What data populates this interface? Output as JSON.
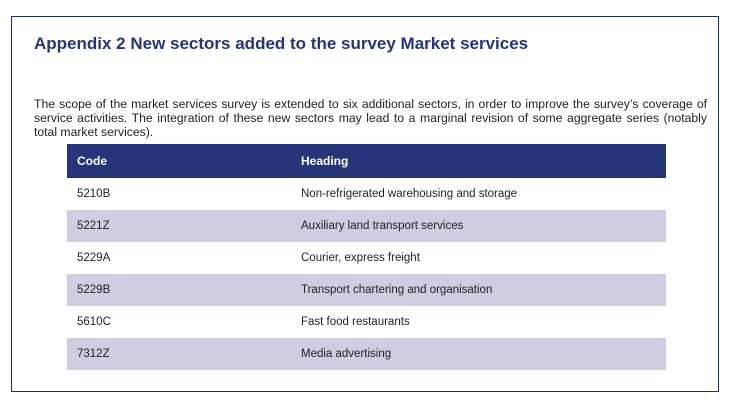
{
  "title": "Appendix 2 New sectors added to the survey  Market services",
  "paragraph": "The scope of the market services survey is extended to six additional sectors, in order to improve the survey’s coverage of service activities. The integration of these new sectors may lead to a marginal revision of some aggregate series (notably total market services).",
  "table": {
    "headers": [
      "Code",
      "Heading"
    ],
    "rows": [
      {
        "code": "5210B",
        "heading": "Non-refrigerated warehousing and storage"
      },
      {
        "code": "5221Z",
        "heading": "Auxiliary land transport services"
      },
      {
        "code": "5229A",
        "heading": "Courier, express freight"
      },
      {
        "code": "5229B",
        "heading": "Transport chartering and organisation"
      },
      {
        "code": "5610C",
        "heading": "Fast food restaurants"
      },
      {
        "code": "7312Z",
        "heading": "Media advertising"
      }
    ]
  },
  "colors": {
    "header_bg": "#24357a",
    "title": "#24357a",
    "alt_row": "#d0cce1",
    "frame_border": "#1f2f6e"
  }
}
